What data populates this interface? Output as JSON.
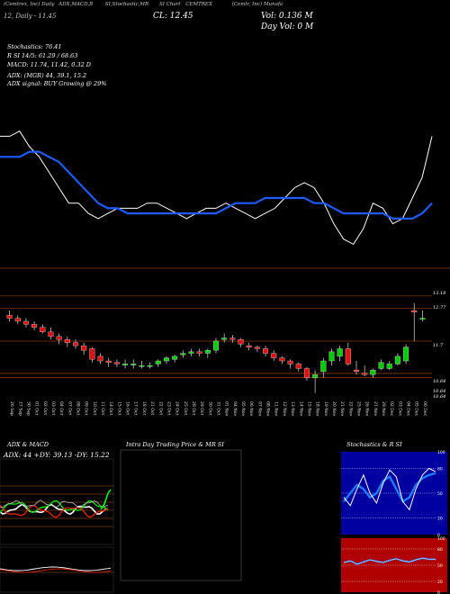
{
  "header": {
    "line1": [
      "(Cemtrex, Inc) Daily",
      "ADX,MACD,B",
      "SI,Stochastic,MR",
      "SI Chart",
      "CEMTREX",
      "(Cemtr, Inc) Munafa",
      "(Cemtrex, Inc)"
    ],
    "line2_left": "CL: 12.45",
    "line2_right": "Vol: 0.136   M",
    "line3": "Day Vol: 0   M",
    "sub_left": "12, Daily - 11.45"
  },
  "indicators": {
    "stoch": "Stochastics: 76.41",
    "rsi": "R        SI 14/5: 61.29 / 68.63",
    "macd": "MACD: 11.74, 11.42, 0.32   D",
    "adx": "ADX:                   (MGR) 44, 39.1, 15.2",
    "adx_signal": "ADX  signal:                              BUY Growing @ 29%"
  },
  "colors": {
    "bg": "#000000",
    "up": "#00cc00",
    "down": "#dd1111",
    "ma": "#1f5bff",
    "price_line": "#ffffff",
    "guide": "#8b3a00",
    "rsi_panel": "#b00000",
    "stoch_panel": "#0000a0"
  },
  "chart_data": [
    {
      "type": "line",
      "panel": "price-vs-moving-average",
      "series": [
        {
          "values": [
            11.6,
            11.6,
            11.7,
            11.4,
            11.2,
            10.9,
            10.6,
            10.3,
            10.3,
            10.1,
            10.0,
            10.1,
            10.2,
            10.2,
            10.2,
            10.3,
            10.3,
            10.2,
            10.1,
            10.0,
            10.1,
            10.2,
            10.2,
            10.3,
            10.2,
            10.1,
            10.0,
            10.1,
            10.2,
            10.4,
            10.6,
            10.7,
            10.6,
            10.3,
            9.9,
            9.6,
            9.5,
            9.8,
            10.3,
            10.2,
            9.9,
            10.0,
            10.4,
            10.8,
            11.6
          ]
        },
        {
          "values": [
            11.2,
            11.2,
            11.2,
            11.3,
            11.3,
            11.2,
            11.1,
            10.9,
            10.7,
            10.5,
            10.3,
            10.2,
            10.2,
            10.1,
            10.1,
            10.1,
            10.1,
            10.1,
            10.1,
            10.1,
            10.1,
            10.1,
            10.1,
            10.2,
            10.3,
            10.3,
            10.3,
            10.4,
            10.4,
            10.4,
            10.4,
            10.4,
            10.3,
            10.3,
            10.2,
            10.1,
            10.1,
            10.1,
            10.1,
            10.1,
            10.0,
            10.0,
            10.0,
            10.1,
            10.3
          ]
        }
      ]
    },
    {
      "type": "candlestick",
      "panel": "daily-candles",
      "x": [
        "26 Sep",
        "27 Sep",
        "30 Sep",
        "01 Oct",
        "02 Oct",
        "03 Oct",
        "04 Oct",
        "07 Oct",
        "08 Oct",
        "09 Oct",
        "10 Oct",
        "11 Oct",
        "14 Oct",
        "15 Oct",
        "16 Oct",
        "17 Oct",
        "18 Oct",
        "21 Oct",
        "22 Oct",
        "23 Oct",
        "24 Oct",
        "25 Oct",
        "28 Oct",
        "29 Oct",
        "30 Oct",
        "31 Oct",
        "01 Nov",
        "04 Nov",
        "05 Nov",
        "06 Nov",
        "07 Nov",
        "08 Nov",
        "11 Nov",
        "12 Nov",
        "13 Nov",
        "14 Nov",
        "15 Nov",
        "18 Nov",
        "19 Nov",
        "20 Nov",
        "21 Nov",
        "22 Nov",
        "25 Nov",
        "26 Nov",
        "27 Nov",
        "29 Nov",
        "02 Dec",
        "03 Dec",
        "04 Dec",
        "05 Dec",
        "06 Dec"
      ],
      "open": [
        12.55,
        12.45,
        12.35,
        12.25,
        12.15,
        12.0,
        11.85,
        11.75,
        11.65,
        11.55,
        11.45,
        11.2,
        11.05,
        11.0,
        10.95,
        10.95,
        10.9,
        10.9,
        10.95,
        11.05,
        11.1,
        11.25,
        11.3,
        11.35,
        11.3,
        11.4,
        11.75,
        11.8,
        11.75,
        11.55,
        11.5,
        11.45,
        11.3,
        11.15,
        11.05,
        10.95,
        10.8,
        10.5,
        10.7,
        11.05,
        11.2,
        11.45,
        10.75,
        10.65,
        10.6,
        10.8,
        10.8,
        10.95,
        11.05,
        12.7,
        12.45
      ],
      "high": [
        12.7,
        12.55,
        12.45,
        12.35,
        12.25,
        12.15,
        11.95,
        11.85,
        11.75,
        11.65,
        11.5,
        11.3,
        11.15,
        11.1,
        11.1,
        11.1,
        11.05,
        11.0,
        11.1,
        11.2,
        11.25,
        11.4,
        11.45,
        11.45,
        11.45,
        11.8,
        11.95,
        11.9,
        11.8,
        11.65,
        11.55,
        11.55,
        11.4,
        11.2,
        11.1,
        11.0,
        10.85,
        10.75,
        11.15,
        11.45,
        11.55,
        11.65,
        11.05,
        10.9,
        10.8,
        11.1,
        11.05,
        11.3,
        11.6,
        12.95,
        12.7
      ],
      "low": [
        12.35,
        12.25,
        12.15,
        12.05,
        11.95,
        11.75,
        11.6,
        11.5,
        11.45,
        11.25,
        11.0,
        10.95,
        10.85,
        10.85,
        10.8,
        10.8,
        10.8,
        10.8,
        10.85,
        10.95,
        11.0,
        11.15,
        11.2,
        11.2,
        11.15,
        11.3,
        11.65,
        11.65,
        11.5,
        11.4,
        11.35,
        11.2,
        11.05,
        10.95,
        10.8,
        10.7,
        10.4,
        10.0,
        10.5,
        10.9,
        11.05,
        10.9,
        10.6,
        10.55,
        10.5,
        10.75,
        10.75,
        10.9,
        10.95,
        11.7,
        12.35
      ],
      "close": [
        12.45,
        12.35,
        12.25,
        12.15,
        12.0,
        11.85,
        11.75,
        11.65,
        11.55,
        11.4,
        11.1,
        11.05,
        11.0,
        10.95,
        10.95,
        10.95,
        10.9,
        10.9,
        11.05,
        11.15,
        11.2,
        11.3,
        11.35,
        11.3,
        11.4,
        11.7,
        11.8,
        11.75,
        11.6,
        11.5,
        11.45,
        11.3,
        11.15,
        11.05,
        10.95,
        10.8,
        10.5,
        10.6,
        11.05,
        11.35,
        11.45,
        10.95,
        10.7,
        10.6,
        10.75,
        11.0,
        10.95,
        11.2,
        11.5,
        12.65,
        12.45
      ],
      "levels": [
        12.77,
        11.7,
        10.64
      ],
      "ylim": [
        9.9,
        13.5
      ]
    }
  ],
  "price_panel_labels": {
    "top": "12.77",
    "mid": "11.7",
    "low1": "10.64",
    "low2": "10.64",
    "low3": "10.64",
    "tag": "13.18"
  },
  "panels": {
    "adx_title": "ADX: 44  +DY: 39.13  -DY: 15.22",
    "adx_label": "ADX  & MACD",
    "intraday_label": "Intra  Day Trading Price  & MR                SI",
    "stoch_label": "Stochastics & R                    SI",
    "stoch_ticks": [
      "100",
      "80",
      "50",
      "20",
      "0"
    ],
    "rsi_ticks": [
      "100",
      "80",
      "50",
      "20",
      "0"
    ],
    "stoch_values_k": [
      45,
      35,
      55,
      72,
      50,
      38,
      62,
      78,
      70,
      40,
      30,
      55,
      72,
      80,
      76
    ],
    "stoch_values_d": [
      40,
      50,
      60,
      55,
      45,
      50,
      65,
      70,
      55,
      40,
      45,
      60,
      68,
      72,
      74
    ],
    "rsi_values": [
      55,
      58,
      52,
      56,
      60,
      57,
      55,
      59,
      62,
      58,
      56,
      60,
      63,
      61,
      61
    ]
  }
}
